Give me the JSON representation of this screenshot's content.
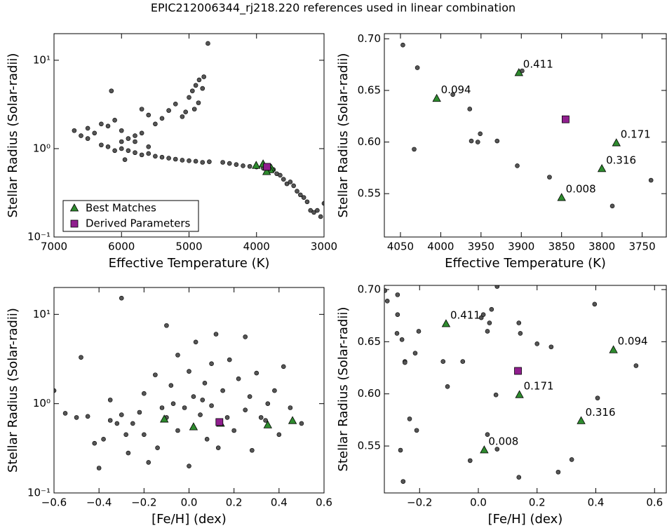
{
  "suptitle": "EPIC212006344_rj218.220 references used in linear combination",
  "chart_data": [
    {
      "type": "scatter",
      "xlabel": "Effective Temperature (K)",
      "ylabel": "Stellar Radius (Solar-radii)",
      "yscale": "log",
      "legend": "lower left",
      "xlim": [
        7000,
        3000
      ],
      "xticks": [
        7000,
        6000,
        5000,
        4000,
        3000
      ],
      "ylim": [
        0.1,
        20
      ],
      "yticks": [
        {
          "value": 0.1,
          "label": "10⁻¹"
        },
        {
          "value": 1,
          "label": "10⁰"
        },
        {
          "value": 10,
          "label": "10¹"
        }
      ],
      "series": [
        {
          "color": "#555555",
          "marker": "circle",
          "x": [
            6700,
            6600,
            6500,
            6400,
            6300,
            6200,
            6100,
            6000,
            5900,
            5800,
            5700,
            5600,
            5500,
            5400,
            5300,
            5200,
            5100,
            5000,
            4950,
            4900,
            4850,
            4800,
            4780,
            4860,
            4920,
            5050,
            5700,
            6150,
            4720,
            6500,
            6300,
            6200,
            6100,
            6000,
            5900,
            5800,
            5700,
            5600,
            5500,
            5400,
            5300,
            5200,
            5100,
            5000,
            4900,
            4800,
            4700,
            4500,
            4400,
            4300,
            4200,
            4100,
            4000,
            3900,
            3700,
            3600,
            3550,
            3500,
            3450,
            3400,
            3350,
            3300,
            3250,
            3200,
            3150,
            3100,
            3050,
            3000,
            3650,
            3750,
            5600,
            6000,
            5800,
            5950
          ],
          "y": [
            1.6,
            1.4,
            1.7,
            1.5,
            1.9,
            1.8,
            2.1,
            1.6,
            1.3,
            1.2,
            1.5,
            2.4,
            1.9,
            2.2,
            2.7,
            3.2,
            2.3,
            3.8,
            4.5,
            5.2,
            6.0,
            4.8,
            6.5,
            3.3,
            2.8,
            2.6,
            2.8,
            4.5,
            15.5,
            1.3,
            1.1,
            1.05,
            0.95,
            1.0,
            0.95,
            0.9,
            0.85,
            0.88,
            0.82,
            0.8,
            0.78,
            0.76,
            0.74,
            0.73,
            0.72,
            0.7,
            0.71,
            0.7,
            0.68,
            0.66,
            0.64,
            0.63,
            0.62,
            0.6,
            0.52,
            0.45,
            0.4,
            0.42,
            0.38,
            0.33,
            0.3,
            0.28,
            0.25,
            0.2,
            0.19,
            0.2,
            0.17,
            0.24,
            0.5,
            0.58,
            1.05,
            1.2,
            1.4,
            0.75
          ]
        },
        {
          "name": "Best Matches",
          "color": "#2e8b2e",
          "marker": "triangle",
          "x": [
            4005,
            3903,
            3782,
            3800,
            3850
          ],
          "y": [
            0.642,
            0.667,
            0.599,
            0.574,
            0.546
          ]
        },
        {
          "name": "Derived Parameters",
          "color": "#901e8e",
          "marker": "square",
          "x": [
            3845
          ],
          "y": [
            0.622
          ]
        }
      ]
    },
    {
      "type": "scatter",
      "xlabel": "Effective Temperature (K)",
      "ylabel": "Stellar Radius (Solar-radii)",
      "yscale": "linear",
      "xlim": [
        4070,
        3720
      ],
      "xticks": [
        4050,
        4000,
        3950,
        3900,
        3850,
        3800,
        3750
      ],
      "ylim": [
        0.508,
        0.705
      ],
      "yticks": [
        0.55,
        {
          "value": 0.6,
          "label": "0.60"
        },
        0.65,
        {
          "value": 0.7,
          "label": "0.70"
        }
      ],
      "series": [
        {
          "color": "#555555",
          "marker": "circle",
          "x": [
            4047,
            4029,
            4033,
            3964,
            3962,
            3951,
            3954,
            3899,
            3985,
            3905,
            3865,
            3787,
            3739,
            3930
          ],
          "y": [
            0.694,
            0.672,
            0.593,
            0.632,
            0.601,
            0.608,
            0.6,
            0.669,
            0.646,
            0.577,
            0.566,
            0.538,
            0.563,
            0.601
          ]
        },
        {
          "color": "#2e8b2e",
          "marker": "triangle",
          "x": [
            4005,
            3903,
            3782,
            3800,
            3850
          ],
          "y": [
            0.642,
            0.667,
            0.599,
            0.574,
            0.546
          ],
          "point_labels": [
            "0.094",
            "0.411",
            "0.171",
            "0.316",
            "0.008"
          ]
        },
        {
          "color": "#901e8e",
          "marker": "square",
          "x": [
            3845
          ],
          "y": [
            0.622
          ]
        }
      ]
    },
    {
      "type": "scatter",
      "xlabel": "[Fe/H] (dex)",
      "ylabel": "Stellar Radius (Solar-radii)",
      "yscale": "log",
      "xlim": [
        -0.6,
        0.6
      ],
      "xticks": [
        {
          "value": -0.6,
          "label": "−0.6"
        },
        {
          "value": -0.4,
          "label": "−0.4"
        },
        {
          "value": -0.2,
          "label": "−0.2"
        },
        {
          "value": 0,
          "label": "0.0"
        },
        0.2,
        0.4,
        0.6
      ],
      "ylim": [
        0.1,
        20
      ],
      "yticks": [
        {
          "value": 0.1,
          "label": "10⁻¹"
        },
        {
          "value": 1,
          "label": "10⁰"
        },
        {
          "value": 10,
          "label": "10¹"
        }
      ],
      "series": [
        {
          "color": "#555555",
          "marker": "circle",
          "x": [
            -0.55,
            -0.5,
            -0.45,
            -0.42,
            -0.4,
            -0.38,
            -0.35,
            -0.32,
            -0.3,
            -0.3,
            -0.28,
            -0.25,
            -0.22,
            -0.2,
            -0.2,
            -0.18,
            -0.15,
            -0.12,
            -0.1,
            -0.1,
            -0.08,
            -0.05,
            -0.05,
            -0.02,
            0,
            0,
            0.02,
            0.03,
            0.05,
            0.07,
            0.08,
            0.1,
            0.1,
            0.12,
            0.15,
            0.17,
            0.18,
            0.2,
            0.22,
            0.25,
            0.25,
            0.27,
            0.28,
            0.3,
            0.32,
            0.35,
            0.38,
            0.4,
            0.42,
            0.45,
            0.5,
            -0.6,
            -0.48,
            -0.35,
            -0.27,
            0.06,
            -0.14,
            0.13,
            0.34,
            -0.07
          ],
          "y": [
            0.78,
            0.7,
            0.72,
            0.36,
            0.19,
            0.4,
            0.65,
            0.6,
            15.2,
            0.75,
            0.45,
            0.6,
            0.8,
            1.3,
            0.45,
            0.22,
            2.1,
            0.9,
            7.5,
            0.7,
            1.6,
            3.5,
            0.5,
            0.9,
            2.3,
            0.2,
            1.2,
            4.9,
            0.75,
            1.7,
            0.4,
            2.8,
            0.95,
            6.0,
            1.4,
            0.7,
            3.1,
            0.5,
            1.9,
            5.6,
            0.85,
            1.2,
            0.3,
            2.2,
            0.7,
            1.0,
            1.4,
            0.45,
            2.6,
            0.9,
            0.6,
            1.4,
            3.3,
            1.1,
            0.28,
            1.1,
            0.32,
            0.32,
            0.65,
            1.0
          ]
        },
        {
          "color": "#2e8b2e",
          "marker": "triangle",
          "x": [
            -0.11,
            0.02,
            0.35,
            0.46,
            0.14
          ],
          "y": [
            0.667,
            0.546,
            0.574,
            0.642,
            0.599
          ]
        },
        {
          "color": "#901e8e",
          "marker": "square",
          "x": [
            0.135
          ],
          "y": [
            0.622
          ]
        }
      ]
    },
    {
      "type": "scatter",
      "xlabel": "[Fe/H] (dex)",
      "ylabel": "Stellar Radius (Solar-radii)",
      "yscale": "linear",
      "xlim": [
        -0.32,
        0.64
      ],
      "xticks": [
        {
          "value": -0.2,
          "label": "−0.2"
        },
        {
          "value": 0,
          "label": "0.0"
        },
        0.2,
        0.4,
        0.6
      ],
      "ylim": [
        0.505,
        0.704
      ],
      "yticks": [
        0.55,
        {
          "value": 0.6,
          "label": "0.60"
        },
        0.65,
        {
          "value": 0.7,
          "label": "0.70"
        }
      ],
      "series": [
        {
          "color": "#555555",
          "marker": "circle",
          "x": [
            -0.318,
            -0.31,
            -0.275,
            -0.275,
            -0.277,
            -0.26,
            -0.25,
            -0.25,
            -0.215,
            -0.203,
            -0.234,
            -0.21,
            -0.265,
            -0.256,
            -0.105,
            -0.12,
            -0.053,
            -0.028,
            0.031,
            0.045,
            0.038,
            0.064,
            0.06,
            0.064,
            0.031,
            0.138,
            0.138,
            0.2,
            0.248,
            0.272,
            0.318,
            0.396,
            0.406,
            0.537,
            0.143,
            0.01,
            0.017
          ],
          "y": [
            0.699,
            0.689,
            0.695,
            0.676,
            0.658,
            0.652,
            0.631,
            0.63,
            0.639,
            0.66,
            0.576,
            0.565,
            0.546,
            0.516,
            0.607,
            0.631,
            0.631,
            0.536,
            0.66,
            0.681,
            0.668,
            0.703,
            0.599,
            0.547,
            0.561,
            0.668,
            0.52,
            0.648,
            0.645,
            0.525,
            0.537,
            0.686,
            0.596,
            0.627,
            0.658,
            0.673,
            0.676
          ]
        },
        {
          "color": "#2e8b2e",
          "marker": "triangle",
          "x": [
            -0.11,
            0.46,
            0.14,
            0.35,
            0.02
          ],
          "y": [
            0.667,
            0.642,
            0.599,
            0.574,
            0.546
          ],
          "point_labels": [
            "0.411",
            "0.094",
            "0.171",
            "0.316",
            "0.008"
          ]
        },
        {
          "color": "#901e8e",
          "marker": "square",
          "x": [
            0.135
          ],
          "y": [
            0.622
          ]
        }
      ]
    }
  ]
}
